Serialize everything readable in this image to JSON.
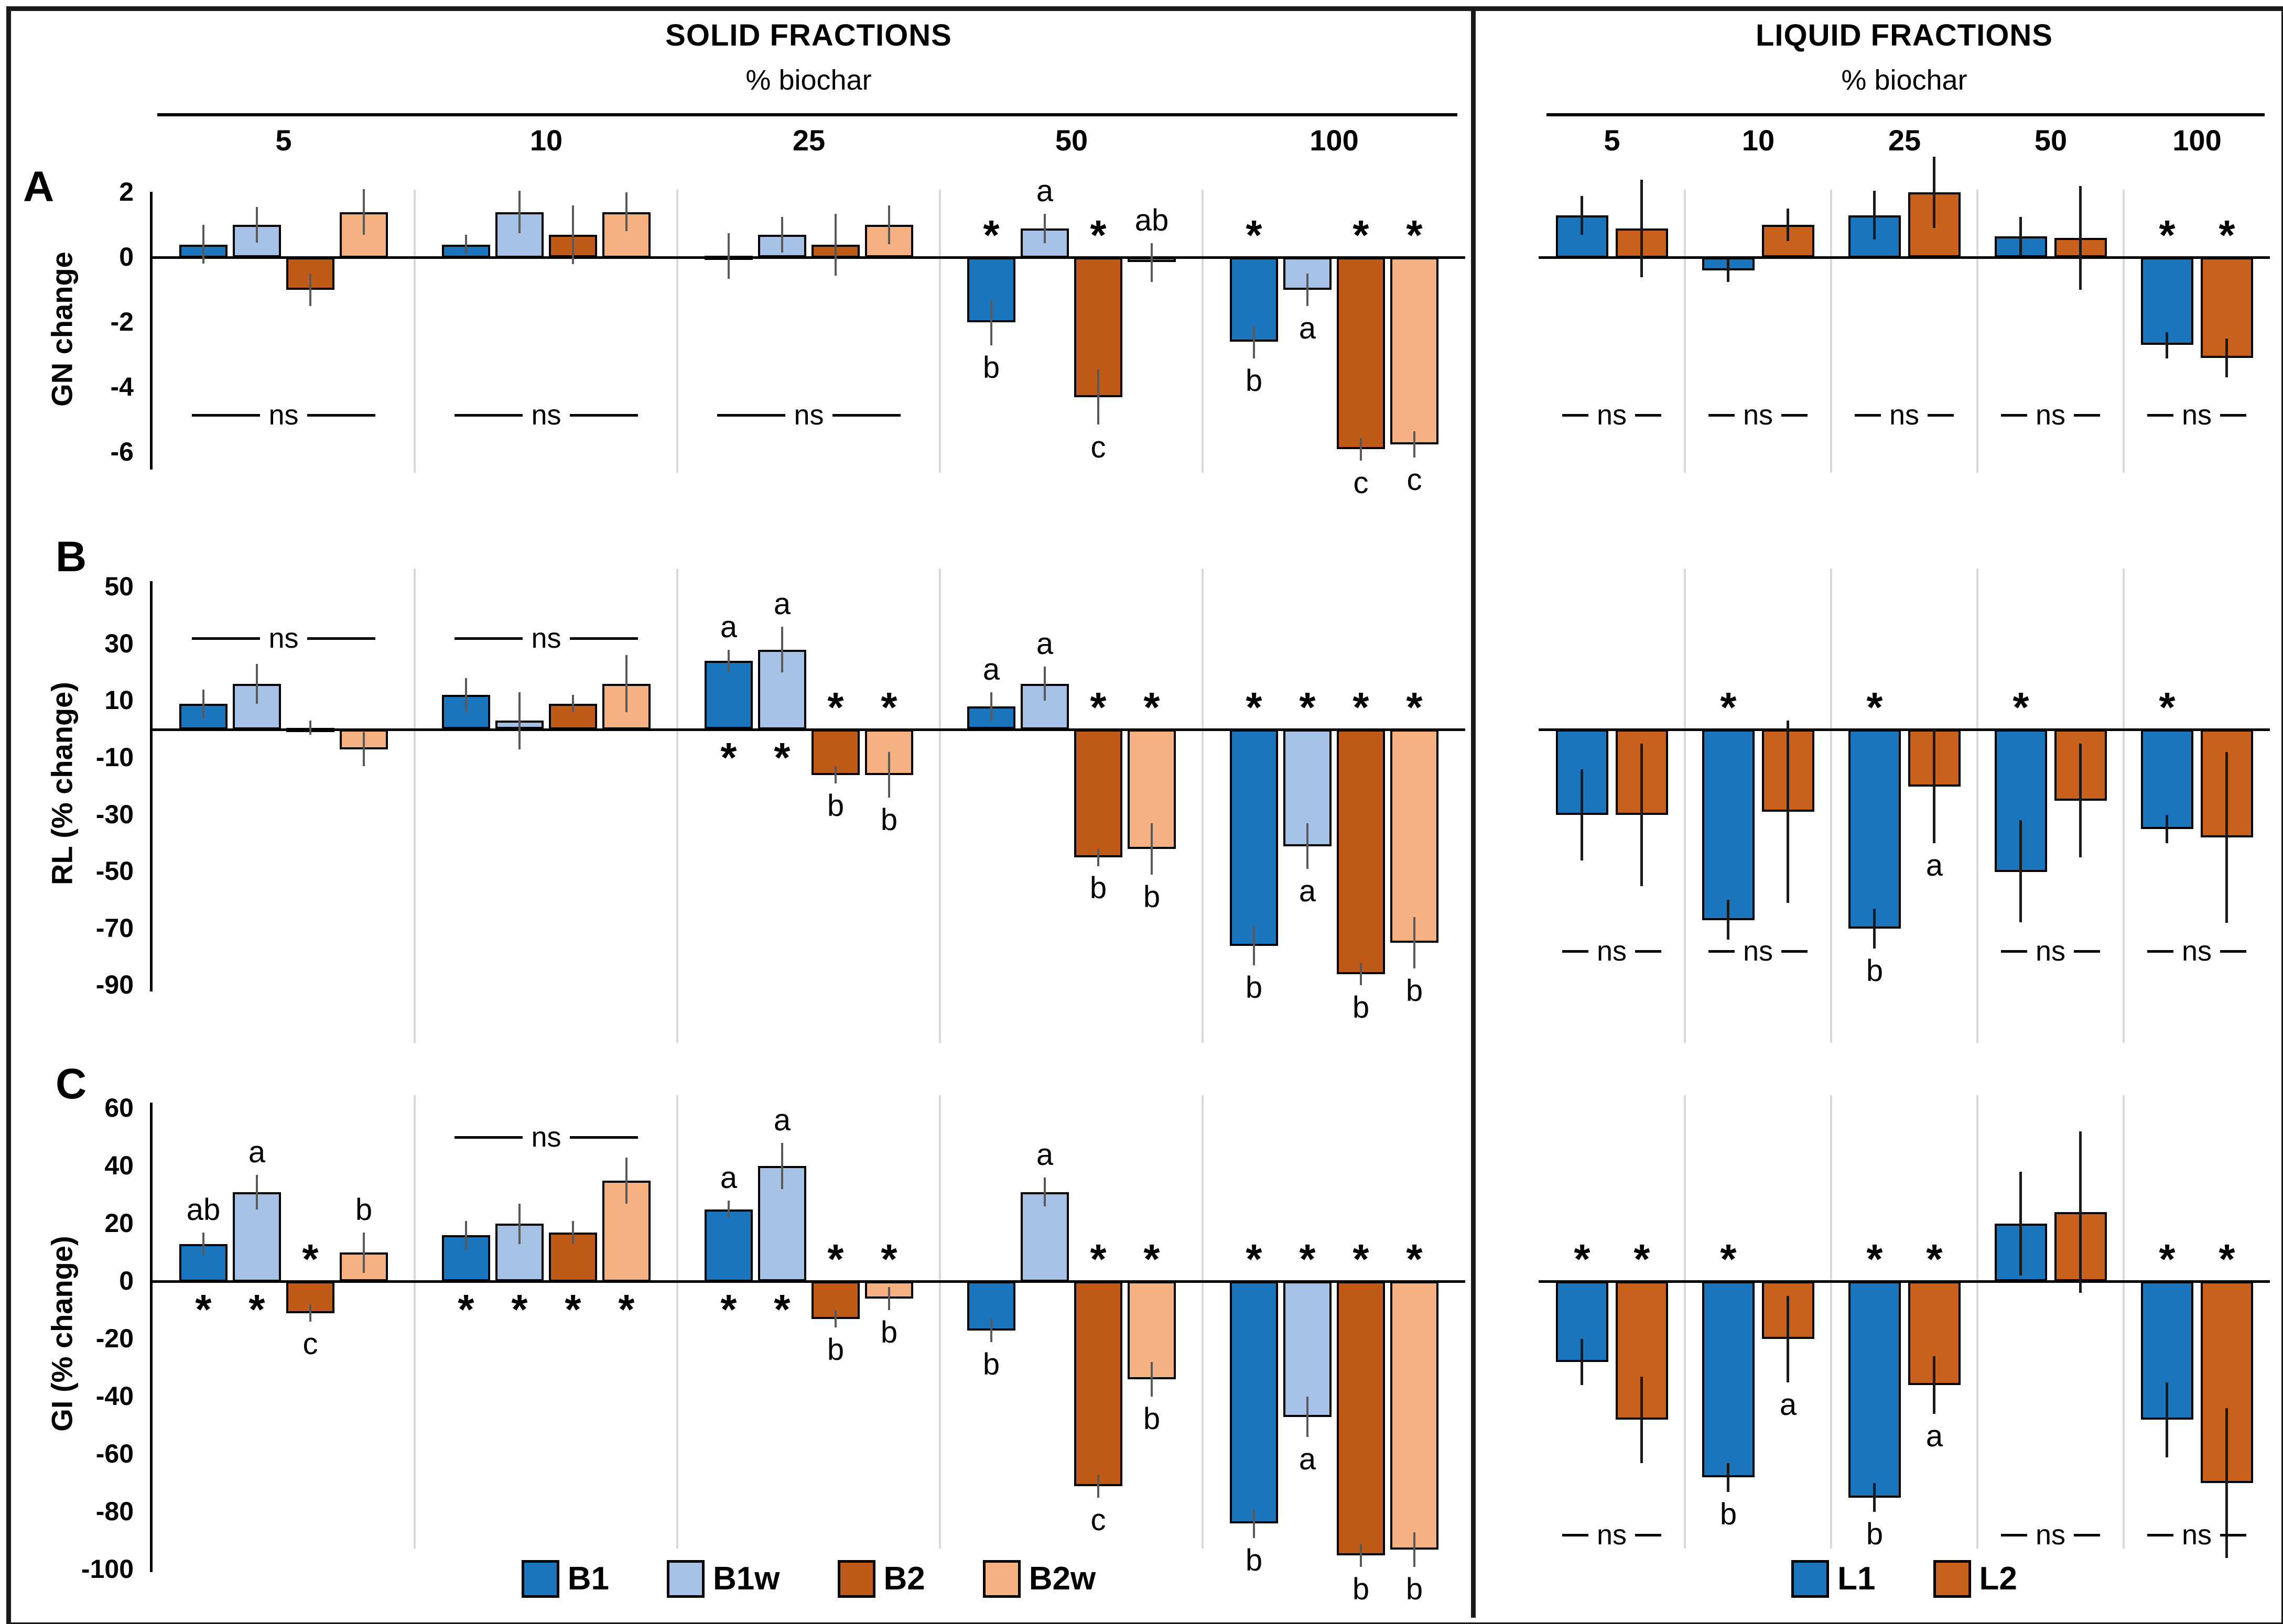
{
  "figure": {
    "sections": [
      {
        "id": "solid",
        "title": "SOLID FRACTIONS",
        "subtitle": "% biochar",
        "categories": [
          "5",
          "10",
          "25",
          "50",
          "100"
        ],
        "series": [
          {
            "name": "B1",
            "color": "#1B75BC"
          },
          {
            "name": "B1w",
            "color": "#A6C1E6"
          },
          {
            "name": "B2",
            "color": "#C05A18"
          },
          {
            "name": "B2w",
            "color": "#F6B183"
          }
        ]
      },
      {
        "id": "liquid",
        "title": "LIQUID FRACTIONS",
        "subtitle": "% biochar",
        "categories": [
          "5",
          "10",
          "25",
          "50",
          "100"
        ],
        "series": [
          {
            "name": "L1",
            "color": "#1B75BC"
          },
          {
            "name": "L2",
            "color": "#C9611C"
          }
        ]
      }
    ],
    "panel_rows": [
      {
        "label": "A",
        "ylabel": "GN change"
      },
      {
        "label": "B",
        "ylabel": "RL (% change)"
      },
      {
        "label": "C",
        "ylabel": "GI (% change)"
      }
    ],
    "annotations": {
      "star": "*",
      "ns": "ns"
    }
  },
  "chart_data": [
    {
      "id": "solid-A",
      "section": "solid",
      "row": "A",
      "type": "bar",
      "title": "GN change, solid fractions",
      "xlabel": "% biochar",
      "ylabel": "GN change",
      "yticks": [
        2,
        0,
        -2,
        -4,
        -6
      ],
      "ylim": [
        -6.6,
        2.2
      ],
      "categories": [
        "5",
        "10",
        "25",
        "50",
        "100"
      ],
      "series": [
        {
          "name": "B1",
          "values": [
            0.4,
            0.4,
            0.05,
            -2.0,
            -2.6
          ],
          "errors": [
            0.6,
            0.3,
            0.7,
            0.7,
            0.5
          ],
          "stars": [
            false,
            false,
            false,
            true,
            true
          ],
          "letters": [
            "",
            "",
            "",
            "b",
            "b"
          ],
          "letter_pos": [
            "",
            "",
            "",
            "below",
            "below"
          ]
        },
        {
          "name": "B1w",
          "values": [
            1.0,
            1.4,
            0.7,
            0.9,
            -1.0
          ],
          "errors": [
            0.55,
            0.65,
            0.55,
            0.45,
            0.5
          ],
          "stars": [
            false,
            false,
            false,
            false,
            false
          ],
          "letters": [
            "",
            "",
            "",
            "a",
            "a"
          ],
          "letter_pos": [
            "",
            "",
            "",
            "above",
            "below"
          ]
        },
        {
          "name": "B2",
          "values": [
            -1.0,
            0.7,
            0.4,
            -4.3,
            -5.9
          ],
          "errors": [
            0.5,
            0.9,
            0.95,
            0.85,
            0.35
          ],
          "stars": [
            false,
            false,
            false,
            true,
            true
          ],
          "letters": [
            "",
            "",
            "",
            "c",
            "c"
          ],
          "letter_pos": [
            "",
            "",
            "",
            "below",
            "below"
          ]
        },
        {
          "name": "B2w",
          "values": [
            1.4,
            1.4,
            1.0,
            -0.15,
            -5.75
          ],
          "errors": [
            0.7,
            0.6,
            0.6,
            0.6,
            0.4
          ],
          "stars": [
            false,
            false,
            false,
            false,
            true
          ],
          "letters": [
            "",
            "",
            "",
            "ab",
            "c"
          ],
          "letter_pos": [
            "",
            "",
            "",
            "above",
            "below"
          ]
        }
      ],
      "ns_groups": [
        0,
        1,
        2
      ],
      "ns_y": -4.85
    },
    {
      "id": "liquid-A",
      "section": "liquid",
      "row": "A",
      "type": "bar",
      "title": "GN change, liquid fractions",
      "xlabel": "% biochar",
      "ylabel": "GN change",
      "yticks": [],
      "ylim": [
        -6.6,
        2.2
      ],
      "categories": [
        "5",
        "10",
        "25",
        "50",
        "100"
      ],
      "series": [
        {
          "name": "L1",
          "values": [
            1.3,
            -0.4,
            1.3,
            0.65,
            -2.7
          ],
          "errors": [
            0.6,
            0.35,
            0.75,
            0.6,
            0.4
          ],
          "stars": [
            false,
            false,
            false,
            false,
            true
          ],
          "letters": [
            "",
            "",
            "",
            "",
            ""
          ],
          "letter_pos": [
            "",
            "",
            "",
            "",
            ""
          ]
        },
        {
          "name": "L2",
          "values": [
            0.9,
            1.0,
            2.0,
            0.6,
            -3.1
          ],
          "errors": [
            1.5,
            0.5,
            1.1,
            1.6,
            0.6
          ],
          "stars": [
            false,
            false,
            false,
            false,
            true
          ],
          "letters": [
            "",
            "",
            "",
            "",
            ""
          ],
          "letter_pos": [
            "",
            "",
            "",
            "",
            ""
          ]
        }
      ],
      "ns_groups": [
        0,
        1,
        2,
        3,
        4
      ],
      "ns_y": -4.85
    },
    {
      "id": "solid-B",
      "section": "solid",
      "row": "B",
      "type": "bar",
      "title": "RL % change, solid fractions",
      "xlabel": "% biochar",
      "ylabel": "RL (% change)",
      "yticks": [
        50,
        30,
        10,
        -10,
        -30,
        -50,
        -70,
        -90
      ],
      "ylim": [
        -92,
        55
      ],
      "categories": [
        "5",
        "10",
        "25",
        "50",
        "100"
      ],
      "series": [
        {
          "name": "B1",
          "values": [
            9,
            12,
            24,
            8,
            -76
          ],
          "errors": [
            5,
            6,
            4,
            5,
            7
          ],
          "stars": [
            false,
            false,
            true,
            false,
            true
          ],
          "letters": [
            "",
            "",
            "a",
            "a",
            "b"
          ],
          "letter_pos": [
            "",
            "",
            "above",
            "above",
            "below"
          ]
        },
        {
          "name": "B1w",
          "values": [
            16,
            3,
            28,
            16,
            -41
          ],
          "errors": [
            7,
            10,
            8,
            6,
            8
          ],
          "stars": [
            false,
            false,
            true,
            false,
            true
          ],
          "letters": [
            "",
            "",
            "a",
            "a",
            "a"
          ],
          "letter_pos": [
            "",
            "",
            "above",
            "above",
            "below"
          ]
        },
        {
          "name": "B2",
          "values": [
            0.5,
            9,
            -16,
            -45,
            -86
          ],
          "errors": [
            2.5,
            3,
            3,
            3,
            4
          ],
          "stars": [
            false,
            false,
            true,
            true,
            true
          ],
          "letters": [
            "",
            "",
            "b",
            "b",
            "b"
          ],
          "letter_pos": [
            "",
            "",
            "below",
            "below",
            "below"
          ]
        },
        {
          "name": "B2w",
          "values": [
            -7,
            16,
            -16,
            -42,
            -75
          ],
          "errors": [
            6,
            10,
            8,
            9,
            9
          ],
          "stars": [
            false,
            false,
            true,
            true,
            true
          ],
          "letters": [
            "",
            "",
            "b",
            "b",
            "b"
          ],
          "letter_pos": [
            "",
            "",
            "below",
            "below",
            "below"
          ]
        }
      ],
      "ns_groups": [
        0,
        1
      ],
      "ns_y": 32
    },
    {
      "id": "liquid-B",
      "section": "liquid",
      "row": "B",
      "type": "bar",
      "title": "RL % change, liquid fractions",
      "xlabel": "% biochar",
      "ylabel": "RL (% change)",
      "yticks": [],
      "ylim": [
        -92,
        55
      ],
      "categories": [
        "5",
        "10",
        "25",
        "50",
        "100"
      ],
      "series": [
        {
          "name": "L1",
          "values": [
            -30,
            -67,
            -70,
            -50,
            -35
          ],
          "errors": [
            16,
            7,
            7,
            18,
            5
          ],
          "stars": [
            false,
            true,
            true,
            true,
            true
          ],
          "letters": [
            "",
            "",
            "b",
            "",
            ""
          ],
          "letter_pos": [
            "",
            "",
            "below",
            "",
            ""
          ]
        },
        {
          "name": "L2",
          "values": [
            -30,
            -29,
            -20,
            -25,
            -38
          ],
          "errors": [
            25,
            32,
            20,
            20,
            30
          ],
          "stars": [
            false,
            false,
            false,
            false,
            false
          ],
          "letters": [
            "",
            "",
            "a",
            "",
            ""
          ],
          "letter_pos": [
            "",
            "",
            "below",
            "",
            ""
          ]
        }
      ],
      "ns_groups": [
        0,
        1,
        3,
        4
      ],
      "ns_y": -78
    },
    {
      "id": "solid-C",
      "section": "solid",
      "row": "C",
      "type": "bar",
      "title": "GI % change, solid fractions",
      "xlabel": "% biochar",
      "ylabel": "GI (% change)",
      "yticks": [
        60,
        40,
        20,
        0,
        -20,
        -40,
        -60,
        -80,
        -100
      ],
      "ylim": [
        -103,
        66
      ],
      "categories": [
        "5",
        "10",
        "25",
        "50",
        "100"
      ],
      "series": [
        {
          "name": "B1",
          "values": [
            13,
            16,
            25,
            -17,
            -84
          ],
          "errors": [
            4,
            5,
            3,
            4,
            5
          ],
          "stars": [
            true,
            true,
            true,
            false,
            true
          ],
          "letters": [
            "ab",
            "",
            "a",
            "b",
            "b"
          ],
          "letter_pos": [
            "above",
            "",
            "above",
            "below",
            "below"
          ]
        },
        {
          "name": "B1w",
          "values": [
            31,
            20,
            40,
            31,
            -47
          ],
          "errors": [
            6,
            7,
            8,
            5,
            7
          ],
          "stars": [
            true,
            true,
            true,
            false,
            true
          ],
          "letters": [
            "a",
            "",
            "a",
            "a",
            "a"
          ],
          "letter_pos": [
            "above",
            "",
            "above",
            "above",
            "below"
          ]
        },
        {
          "name": "B2",
          "values": [
            -11,
            17,
            -13,
            -71,
            -95
          ],
          "errors": [
            3,
            4,
            3,
            4,
            4
          ],
          "stars": [
            true,
            true,
            true,
            true,
            true
          ],
          "letters": [
            "c",
            "",
            "b",
            "c",
            "b"
          ],
          "letter_pos": [
            "below",
            "",
            "below",
            "below",
            "below"
          ]
        },
        {
          "name": "B2w",
          "values": [
            10,
            35,
            -6,
            -34,
            -93
          ],
          "errors": [
            7,
            8,
            4,
            6,
            6
          ],
          "stars": [
            false,
            true,
            true,
            true,
            true
          ],
          "letters": [
            "b",
            "",
            "b",
            "b",
            "b"
          ],
          "letter_pos": [
            "above",
            "",
            "below",
            "below",
            "below"
          ]
        }
      ],
      "ns_groups": [
        1
      ],
      "ns_y": 50
    },
    {
      "id": "liquid-C",
      "section": "liquid",
      "row": "C",
      "type": "bar",
      "title": "GI % change, liquid fractions",
      "xlabel": "% biochar",
      "ylabel": "GI (% change)",
      "yticks": [],
      "ylim": [
        -103,
        66
      ],
      "categories": [
        "5",
        "10",
        "25",
        "50",
        "100"
      ],
      "series": [
        {
          "name": "L1",
          "values": [
            -28,
            -68,
            -75,
            20,
            -48
          ],
          "errors": [
            8,
            5,
            5,
            18,
            13
          ],
          "stars": [
            true,
            true,
            true,
            false,
            true
          ],
          "letters": [
            "",
            "b",
            "b",
            "",
            ""
          ],
          "letter_pos": [
            "",
            "below",
            "below",
            "",
            ""
          ]
        },
        {
          "name": "L2",
          "values": [
            -48,
            -20,
            -36,
            24,
            -70
          ],
          "errors": [
            15,
            15,
            10,
            28,
            26
          ],
          "stars": [
            true,
            false,
            true,
            false,
            true
          ],
          "letters": [
            "",
            "a",
            "a",
            "",
            ""
          ],
          "letter_pos": [
            "",
            "below",
            "below",
            "",
            ""
          ]
        }
      ],
      "ns_groups": [
        0,
        3,
        4
      ],
      "ns_y": -88
    }
  ]
}
